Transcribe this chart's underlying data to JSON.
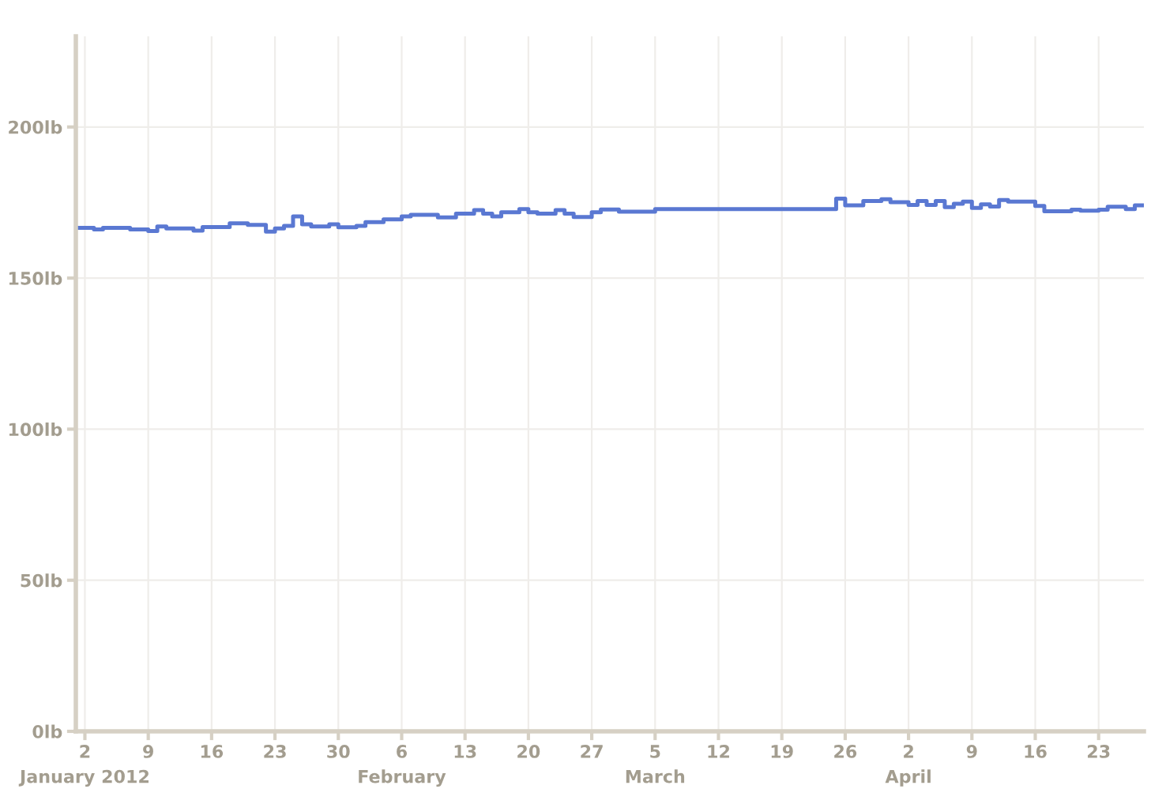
{
  "chart_data": {
    "type": "step",
    "x": [
      "2012-01-01",
      "2012-01-03",
      "2012-01-04",
      "2012-01-07",
      "2012-01-09",
      "2012-01-10",
      "2012-01-11",
      "2012-01-14",
      "2012-01-15",
      "2012-01-18",
      "2012-01-20",
      "2012-01-22",
      "2012-01-23",
      "2012-01-24",
      "2012-01-25",
      "2012-01-26",
      "2012-01-27",
      "2012-01-29",
      "2012-01-30",
      "2012-02-01",
      "2012-02-02",
      "2012-02-04",
      "2012-02-06",
      "2012-02-07",
      "2012-02-10",
      "2012-02-12",
      "2012-02-14",
      "2012-02-15",
      "2012-02-16",
      "2012-02-17",
      "2012-02-19",
      "2012-02-20",
      "2012-02-21",
      "2012-02-23",
      "2012-02-24",
      "2012-02-25",
      "2012-02-27",
      "2012-02-28",
      "2012-03-01",
      "2012-03-05",
      "2012-03-25",
      "2012-03-26",
      "2012-03-28",
      "2012-03-30",
      "2012-03-31",
      "2012-04-02",
      "2012-04-03",
      "2012-04-04",
      "2012-04-05",
      "2012-04-06",
      "2012-04-07",
      "2012-04-08",
      "2012-04-09",
      "2012-04-10",
      "2012-04-11",
      "2012-04-12",
      "2012-04-13",
      "2012-04-16",
      "2012-04-17",
      "2012-04-20",
      "2012-04-21",
      "2012-04-23",
      "2012-04-24",
      "2012-04-26",
      "2012-04-27",
      "2012-04-28"
    ],
    "series": [
      {
        "color": "#5a78d2",
        "values": [
          166.6,
          166.1,
          166.6,
          166.1,
          165.6,
          167.1,
          166.4,
          165.7,
          166.9,
          168.1,
          167.6,
          165.4,
          166.4,
          167.3,
          170.4,
          167.8,
          167.1,
          167.8,
          166.8,
          167.3,
          168.5,
          169.4,
          170.4,
          170.9,
          170.1,
          171.3,
          172.5,
          171.3,
          170.4,
          171.8,
          172.8,
          171.8,
          171.3,
          172.5,
          171.3,
          170.2,
          171.8,
          172.7,
          172.0,
          172.8,
          176.3,
          174.1,
          175.5,
          176.1,
          175.1,
          174.2,
          175.5,
          174.2,
          175.5,
          173.5,
          174.6,
          175.3,
          173.2,
          174.4,
          173.7,
          175.8,
          175.3,
          173.9,
          172.1,
          172.6,
          172.3,
          172.6,
          173.6,
          172.8,
          174.1,
          174.1
        ]
      }
    ],
    "xlim": [
      "2012-01-01",
      "2012-04-28"
    ],
    "xticks": [
      {
        "value": "2012-01-02",
        "label": "2\nJanuary 2012"
      },
      {
        "value": "2012-01-09",
        "label": "9"
      },
      {
        "value": "2012-01-16",
        "label": "16"
      },
      {
        "value": "2012-01-23",
        "label": "23"
      },
      {
        "value": "2012-01-30",
        "label": "30"
      },
      {
        "value": "2012-02-06",
        "label": "6\nFebruary"
      },
      {
        "value": "2012-02-13",
        "label": "13"
      },
      {
        "value": "2012-02-20",
        "label": "20"
      },
      {
        "value": "2012-02-27",
        "label": "27"
      },
      {
        "value": "2012-03-05",
        "label": "5\nMarch"
      },
      {
        "value": "2012-03-12",
        "label": "12"
      },
      {
        "value": "2012-03-19",
        "label": "19"
      },
      {
        "value": "2012-03-26",
        "label": "26"
      },
      {
        "value": "2012-04-02",
        "label": "2\nApril"
      },
      {
        "value": "2012-04-09",
        "label": "9"
      },
      {
        "value": "2012-04-16",
        "label": "16"
      },
      {
        "value": "2012-04-23",
        "label": "23"
      }
    ],
    "ylim": [
      0,
      230
    ],
    "yticks": [
      {
        "value": 0,
        "label": "0lb"
      },
      {
        "value": 50,
        "label": "50lb"
      },
      {
        "value": 100,
        "label": "100lb"
      },
      {
        "value": 150,
        "label": "150lb"
      },
      {
        "value": 200,
        "label": "200lb"
      }
    ],
    "grid": true,
    "line_style": "solid"
  }
}
